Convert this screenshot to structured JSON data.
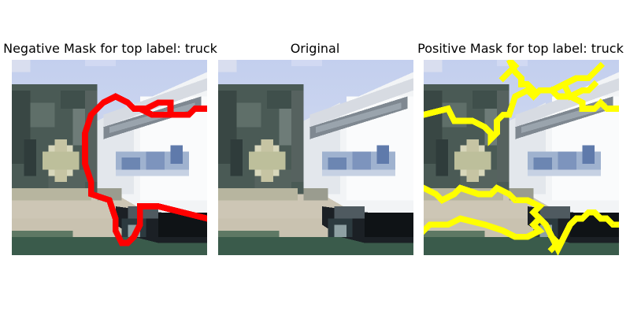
{
  "figure": {
    "panels": [
      {
        "id": "negative",
        "title": "Negative Mask for top label: truck",
        "mask_color": "#ff0000"
      },
      {
        "id": "original",
        "title": "Original"
      },
      {
        "id": "positive",
        "title": "Positive Mask for top label: truck",
        "mask_color": "#ffff00"
      }
    ]
  }
}
